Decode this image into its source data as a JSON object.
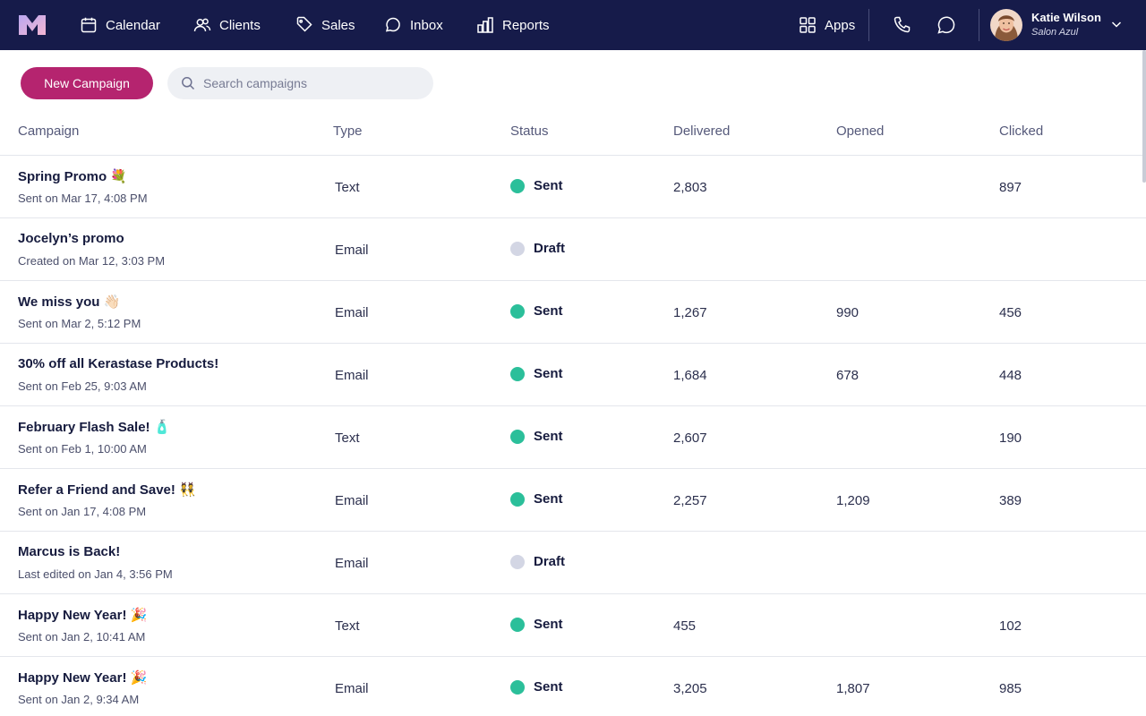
{
  "nav": {
    "items": [
      {
        "label": "Calendar",
        "icon": "calendar-icon"
      },
      {
        "label": "Clients",
        "icon": "clients-icon"
      },
      {
        "label": "Sales",
        "icon": "tag-icon"
      },
      {
        "label": "Inbox",
        "icon": "inbox-icon"
      },
      {
        "label": "Reports",
        "icon": "bar-chart-icon"
      }
    ],
    "apps_label": "Apps",
    "user": {
      "name": "Katie Wilson",
      "business": "Salon Azul"
    }
  },
  "toolbar": {
    "new_campaign_label": "New Campaign",
    "search_placeholder": "Search campaigns"
  },
  "table": {
    "columns": [
      "Campaign",
      "Type",
      "Status",
      "Delivered",
      "Opened",
      "Clicked"
    ],
    "rows": [
      {
        "name": "Spring Promo 💐",
        "meta": "Sent on Mar 17, 4:08 PM",
        "type": "Text",
        "status": "Sent",
        "delivered": "2,803",
        "opened": "",
        "clicked": "897"
      },
      {
        "name": "Jocelyn’s promo",
        "meta": "Created on Mar 12, 3:03 PM",
        "type": "Email",
        "status": "Draft",
        "delivered": "",
        "opened": "",
        "clicked": ""
      },
      {
        "name": "We miss you 👋🏻",
        "meta": "Sent on Mar 2, 5:12 PM",
        "type": "Email",
        "status": "Sent",
        "delivered": "1,267",
        "opened": "990",
        "clicked": "456"
      },
      {
        "name": "30% off all Kerastase Products!",
        "meta": "Sent on Feb 25, 9:03 AM",
        "type": "Email",
        "status": "Sent",
        "delivered": "1,684",
        "opened": "678",
        "clicked": "448"
      },
      {
        "name": "February Flash Sale! 🧴",
        "meta": "Sent on Feb 1, 10:00 AM",
        "type": "Text",
        "status": "Sent",
        "delivered": "2,607",
        "opened": "",
        "clicked": "190"
      },
      {
        "name": "Refer a Friend and Save! 👯",
        "meta": "Sent on Jan 17, 4:08 PM",
        "type": "Email",
        "status": "Sent",
        "delivered": "2,257",
        "opened": "1,209",
        "clicked": "389"
      },
      {
        "name": "Marcus is Back!",
        "meta": "Last edited on Jan 4, 3:56 PM",
        "type": "Email",
        "status": "Draft",
        "delivered": "",
        "opened": "",
        "clicked": ""
      },
      {
        "name": "Happy New Year! 🎉",
        "meta": "Sent on Jan 2, 10:41 AM",
        "type": "Text",
        "status": "Sent",
        "delivered": "455",
        "opened": "",
        "clicked": "102"
      },
      {
        "name": "Happy New Year! 🎉",
        "meta": "Sent on Jan 2, 9:34 AM",
        "type": "Email",
        "status": "Sent",
        "delivered": "3,205",
        "opened": "1,807",
        "clicked": "985"
      }
    ]
  },
  "colors": {
    "nav_bg": "#161b4a",
    "primary": "#b5246f",
    "sent": "#2bbf9a",
    "draft": "#d3d6e4"
  }
}
